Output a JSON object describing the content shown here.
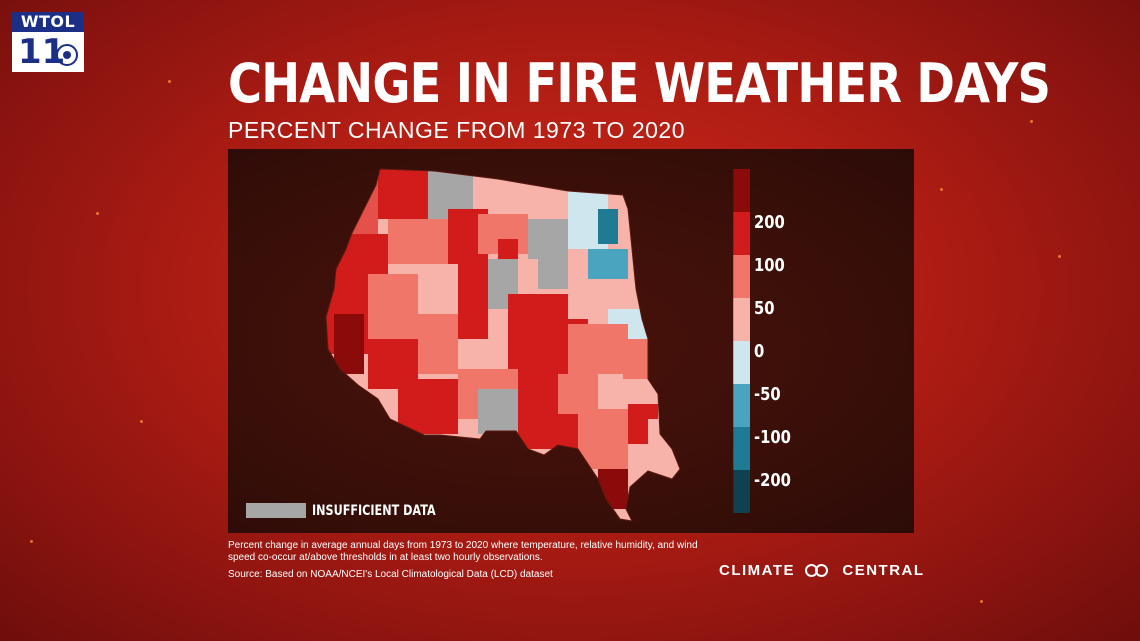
{
  "station": {
    "call": "WTOL",
    "channel": "11"
  },
  "title": "CHANGE IN FIRE WEATHER DAYS",
  "subtitle": "PERCENT CHANGE FROM 1973 TO 2020",
  "legend": {
    "ticks": [
      "200",
      "100",
      "50",
      "0",
      "-50",
      "-100",
      "-200"
    ],
    "colors": [
      "#8b0a0a",
      "#d21b1b",
      "#f0766a",
      "#f7b2aa",
      "#cfe6ee",
      "#4aa3bf",
      "#1f7a93",
      "#0f4150"
    ],
    "insufficient_label": "INSUFFICIENT DATA",
    "insufficient_color": "#a6a6a6"
  },
  "footnote": "Percent change in average annual days from 1973 to 2020 where temperature, relative humidity, and wind speed co-occur at/above thresholds in at least two hourly observations.",
  "source": "Source: Based on NOAA/NCEI's Local Climatological Data (LCD) dataset",
  "brand": {
    "left": "CLIMATE",
    "right": "CENTRAL"
  }
}
